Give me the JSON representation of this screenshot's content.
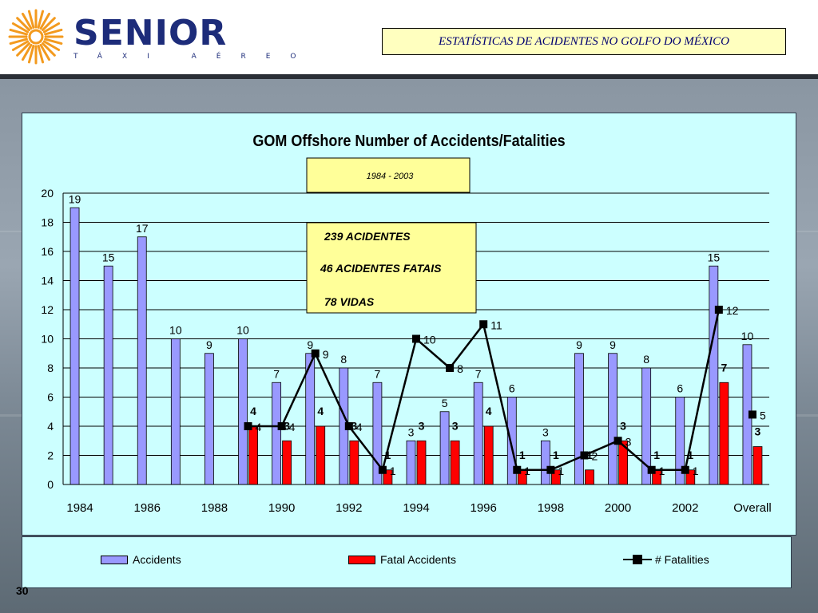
{
  "header": {
    "brand": "SENIOR",
    "brand_sub": "TÁXI AÉREO",
    "slide_title": "ESTATÍSTICAS DE ACIDENTES NO GOLFO DO MÉXICO"
  },
  "page_number": "30",
  "chart_data": {
    "type": "bar",
    "title": "GOM Offshore Number of Accidents/Fatalities",
    "subtitle": "1984 - 2003",
    "xlabel": "",
    "ylabel": "",
    "ylim": [
      0,
      20
    ],
    "yticks": [
      0,
      2,
      4,
      6,
      8,
      10,
      12,
      14,
      16,
      18,
      20
    ],
    "grid": true,
    "categories": [
      "1984",
      "1985",
      "1986",
      "1987",
      "1988",
      "1989",
      "1990",
      "1991",
      "1992",
      "1993",
      "1994",
      "1995",
      "1996",
      "1997",
      "1998",
      "1999",
      "2000",
      "2001",
      "2002",
      "2003",
      "Overall"
    ],
    "xtick_labels": [
      "1984",
      "1986",
      "1988",
      "1990",
      "1992",
      "1994",
      "1996",
      "1998",
      "2000",
      "2002",
      "Overall"
    ],
    "series": [
      {
        "name": "Accidents",
        "type": "bar",
        "color": "#9999ff",
        "values": [
          19,
          15,
          17,
          10,
          9,
          10,
          7,
          9,
          8,
          7,
          3,
          5,
          7,
          6,
          3,
          9,
          9,
          8,
          6,
          15,
          9.6
        ],
        "labels": [
          "19",
          "15",
          "17",
          "10",
          "9",
          "10",
          "7",
          "9",
          "8",
          "7",
          "3",
          "5",
          "7",
          "6",
          "3",
          "9",
          "9",
          "8",
          "6",
          "15",
          "10"
        ]
      },
      {
        "name": "Fatal Accidents",
        "type": "bar",
        "color": "#ff0000",
        "values": [
          0,
          0,
          0,
          0,
          0,
          4,
          3,
          4,
          3,
          1,
          3,
          3,
          4,
          1,
          1,
          1,
          3,
          1,
          1,
          7,
          2.6
        ],
        "labels": [
          "",
          "",
          "",
          "",
          "",
          "4",
          "3",
          "4",
          "3",
          "1",
          "3",
          "3",
          "4",
          "1",
          "1",
          "1",
          "3",
          "1",
          "1",
          "7",
          "3"
        ]
      },
      {
        "name": "# Fatalities",
        "type": "line",
        "color": "#000000",
        "values": [
          null,
          null,
          null,
          null,
          null,
          4,
          4,
          9,
          4,
          1,
          10,
          8,
          11,
          1,
          1,
          2,
          3,
          1,
          1,
          12,
          4.8
        ],
        "labels": [
          "",
          "",
          "",
          "",
          "",
          "4",
          "4",
          "9",
          "4",
          "1",
          "10",
          "8",
          "11",
          "1",
          "1",
          "2",
          "3",
          "1",
          "1",
          "12",
          "5"
        ]
      }
    ],
    "legend_position": "bottom",
    "annotations": {
      "summary_lines": [
        "239 ACIDENTES",
        "46 ACIDENTES FATAIS",
        "78 VIDAS"
      ]
    }
  },
  "colors": {
    "panel_bg": "#ccffff",
    "title_box_bg": "#ffffbf",
    "brand": "#1d2c7a",
    "accent_orange": "#f39a1e"
  }
}
